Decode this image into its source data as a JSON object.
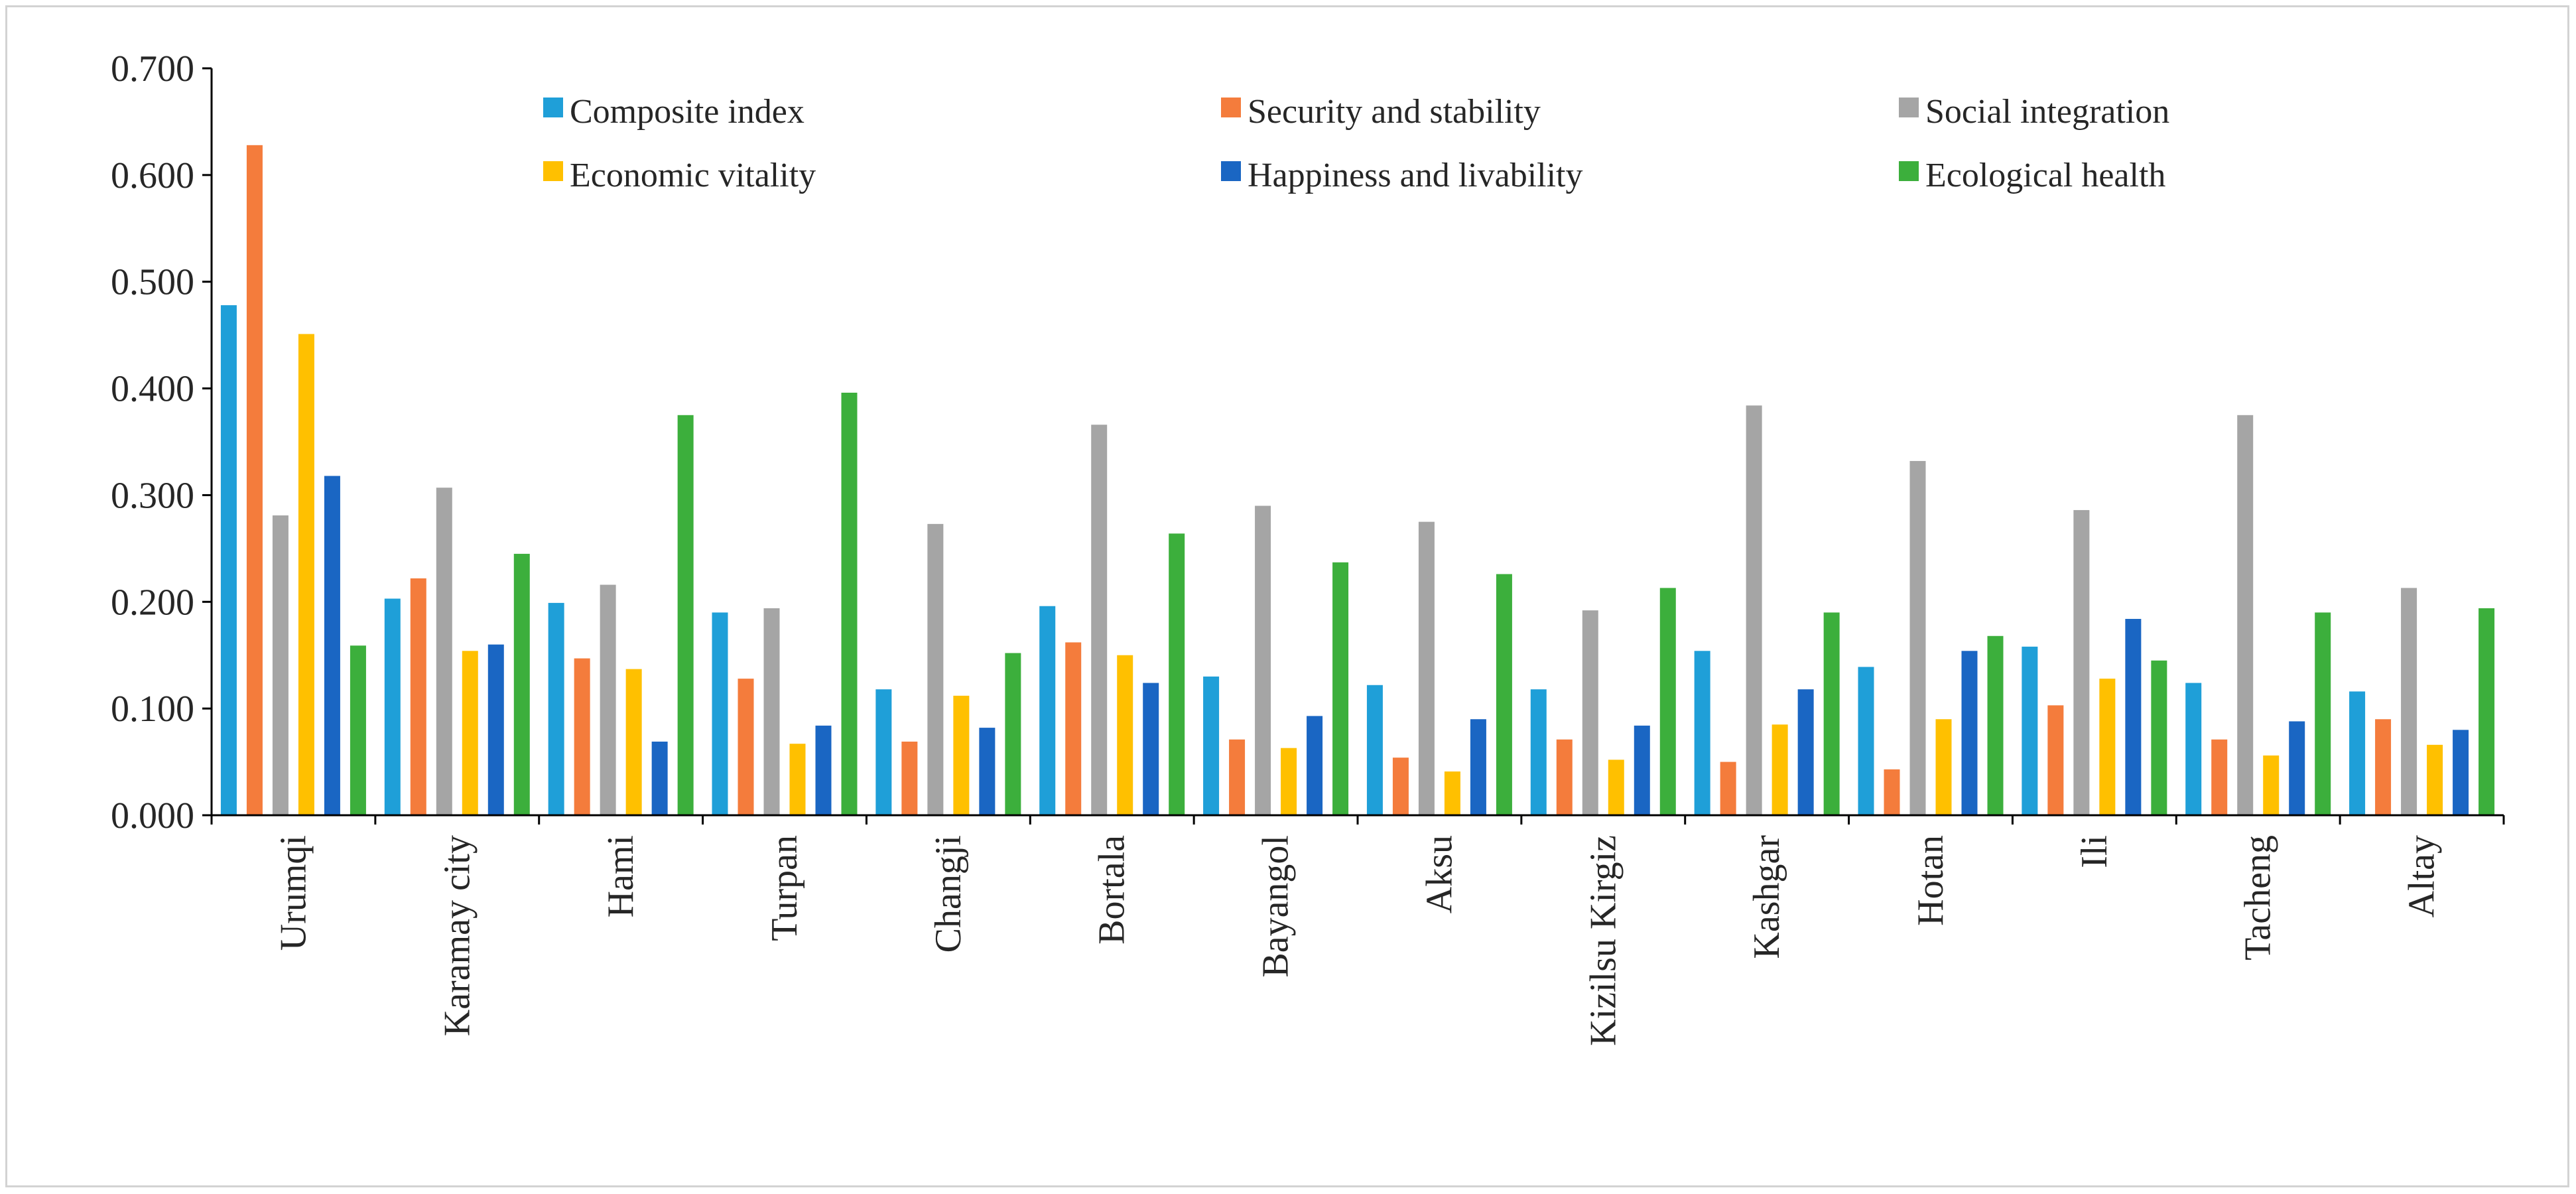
{
  "chart_data": {
    "type": "bar",
    "title": "",
    "xlabel": "",
    "ylabel": "",
    "ylim": [
      0,
      0.7
    ],
    "ytick_step": 0.1,
    "ytick_decimals": 3,
    "grid": false,
    "legend_position": "top",
    "categories": [
      "Urumqi",
      "Karamay city",
      "Hami",
      "Turpan",
      "Changji",
      "Bortala",
      "Bayangol",
      "Aksu",
      "Kizilsu Kirgiz",
      "Kashgar",
      "Hotan",
      "Ili",
      "Tacheng",
      "Altay"
    ],
    "series": [
      {
        "name": "Composite index",
        "color": "#1f9fd8",
        "values": [
          0.478,
          0.203,
          0.199,
          0.19,
          0.118,
          0.196,
          0.13,
          0.122,
          0.118,
          0.154,
          0.139,
          0.158,
          0.124,
          0.116
        ]
      },
      {
        "name": "Security and stability",
        "color": "#f47c3c",
        "values": [
          0.628,
          0.222,
          0.147,
          0.128,
          0.069,
          0.162,
          0.071,
          0.054,
          0.071,
          0.05,
          0.043,
          0.103,
          0.071,
          0.09
        ]
      },
      {
        "name": "Social integration",
        "color": "#a5a5a5",
        "values": [
          0.281,
          0.307,
          0.216,
          0.194,
          0.273,
          0.366,
          0.29,
          0.275,
          0.192,
          0.384,
          0.332,
          0.286,
          0.375,
          0.213
        ]
      },
      {
        "name": "Economic vitality",
        "color": "#ffc000",
        "values": [
          0.451,
          0.154,
          0.137,
          0.067,
          0.112,
          0.15,
          0.063,
          0.041,
          0.052,
          0.085,
          0.09,
          0.128,
          0.056,
          0.066
        ]
      },
      {
        "name": "Happiness and livability",
        "color": "#1a66c3",
        "values": [
          0.318,
          0.16,
          0.069,
          0.084,
          0.082,
          0.124,
          0.093,
          0.09,
          0.084,
          0.118,
          0.154,
          0.184,
          0.088,
          0.08
        ]
      },
      {
        "name": "Ecological health",
        "color": "#3caf3c",
        "values": [
          0.159,
          0.245,
          0.375,
          0.396,
          0.152,
          0.264,
          0.237,
          0.226,
          0.213,
          0.19,
          0.168,
          0.145,
          0.19,
          0.194
        ]
      }
    ]
  }
}
